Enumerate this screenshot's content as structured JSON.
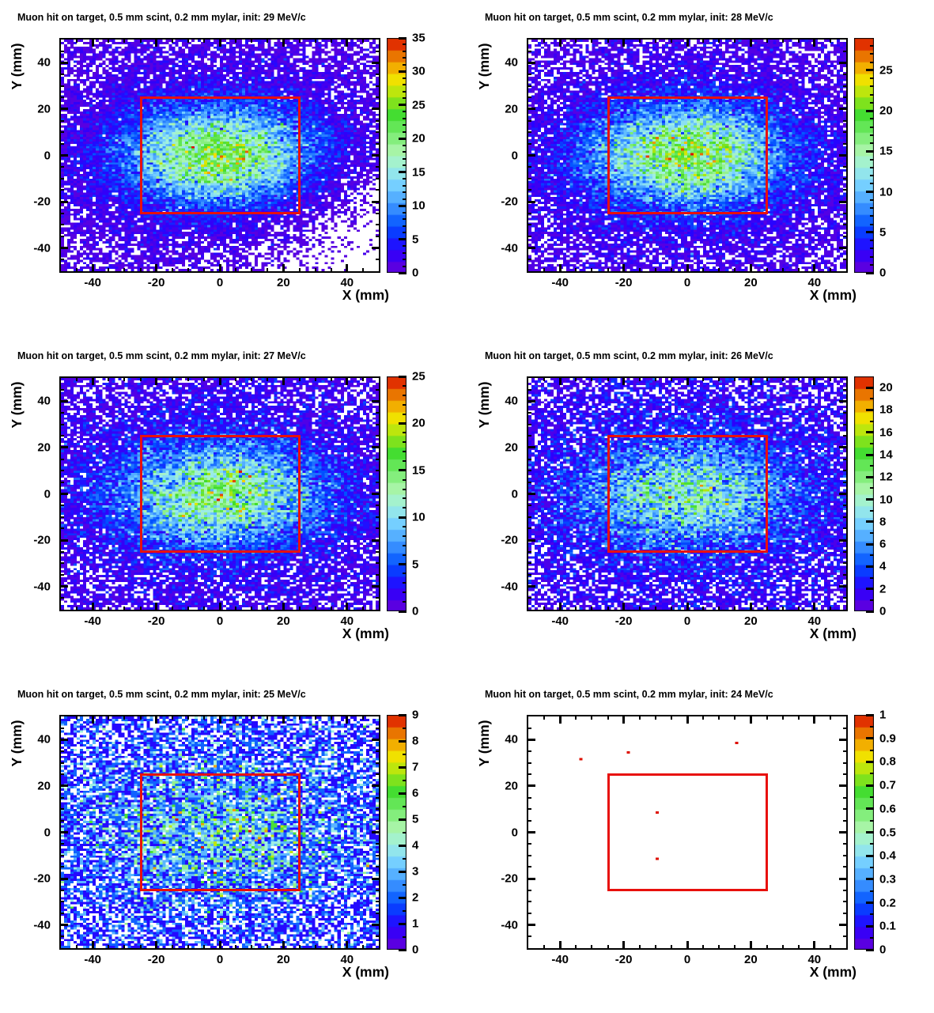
{
  "chart_data": {
    "type": "heatmap",
    "layout": {
      "rows": 3,
      "cols": 2
    },
    "shared": {
      "x_label": "X (mm)",
      "y_label": "Y (mm)",
      "x_range": [
        -50,
        50
      ],
      "y_range": [
        -50,
        50
      ],
      "x_major_ticks": [
        -40,
        -20,
        0,
        20,
        40
      ],
      "y_major_ticks": [
        -40,
        -20,
        0,
        20,
        40
      ],
      "axis_minor_step": 5,
      "bins": [
        100,
        100
      ],
      "grid": false,
      "zero_bin_color": "#ffffff",
      "overlay_rect": {
        "x_min": -25,
        "x_max": 25,
        "y_min": -25,
        "y_max": 25,
        "color": "#e8100c"
      },
      "palette_name": "root-rainbow",
      "palette_stops": [
        [
          0.0,
          106,
          0,
          215
        ],
        [
          0.1,
          40,
          0,
          255
        ],
        [
          0.2,
          0,
          80,
          255
        ],
        [
          0.3,
          70,
          160,
          255
        ],
        [
          0.38,
          120,
          210,
          255
        ],
        [
          0.45,
          160,
          240,
          225
        ],
        [
          0.52,
          170,
          245,
          170
        ],
        [
          0.6,
          115,
          235,
          105
        ],
        [
          0.68,
          65,
          220,
          45
        ],
        [
          0.75,
          160,
          230,
          20
        ],
        [
          0.82,
          240,
          230,
          0
        ],
        [
          0.88,
          242,
          170,
          0
        ],
        [
          0.94,
          230,
          100,
          0
        ],
        [
          1.0,
          222,
          15,
          0
        ]
      ]
    },
    "panels": [
      {
        "title": "Muon hit on target, 0.5 mm scint, 0.2 mm mylar, init: 29 MeV/c",
        "init_momentum_MeV_c": 29,
        "z_max": 35,
        "z_major_ticks": [
          0,
          5,
          10,
          15,
          20,
          25,
          30,
          35
        ],
        "z_minor_step": 1,
        "distribution": {
          "model": "poisson(gaussian_core+background)",
          "amplitude": 21,
          "sigma_x": 19,
          "sigma_y": 13.5,
          "background": 2.2,
          "background_sigma": 55,
          "diag_fade": {
            "c": 55,
            "w": 12
          },
          "seed": 101
        }
      },
      {
        "title": "Muon hit on target, 0.5 mm scint, 0.2 mm mylar, init: 28 MeV/c",
        "init_momentum_MeV_c": 28,
        "z_max": 29,
        "z_major_ticks": [
          0,
          5,
          10,
          15,
          20,
          25
        ],
        "z_minor_step": 1,
        "distribution": {
          "model": "poisson(gaussian_core+background)",
          "amplitude": 17,
          "sigma_x": 20,
          "sigma_y": 14,
          "background": 2.0,
          "background_sigma": 55,
          "diag_fade": null,
          "seed": 202
        }
      },
      {
        "title": "Muon hit on target, 0.5 mm scint, 0.2 mm mylar, init: 27 MeV/c",
        "init_momentum_MeV_c": 27,
        "z_max": 25,
        "z_major_ticks": [
          0,
          5,
          10,
          15,
          20,
          25
        ],
        "z_minor_step": 1,
        "distribution": {
          "model": "poisson(gaussian_core+background)",
          "amplitude": 12.5,
          "sigma_x": 21,
          "sigma_y": 14,
          "background": 2.0,
          "background_sigma": 60,
          "diag_fade": null,
          "seed": 303
        }
      },
      {
        "title": "Muon hit on target, 0.5 mm scint, 0.2 mm mylar, init: 26 MeV/c",
        "init_momentum_MeV_c": 26,
        "z_max": 21,
        "z_major_ticks": [
          0,
          2,
          4,
          6,
          8,
          10,
          12,
          14,
          16,
          18,
          20
        ],
        "z_minor_step": 1,
        "distribution": {
          "model": "poisson(gaussian_core+background)",
          "amplitude": 8.5,
          "sigma_x": 22,
          "sigma_y": 15,
          "background": 1.8,
          "background_sigma": 65,
          "diag_fade": null,
          "seed": 404
        }
      },
      {
        "title": "Muon hit on target, 0.5 mm scint, 0.2 mm mylar, init: 25 MeV/c",
        "init_momentum_MeV_c": 25,
        "z_max": 9,
        "z_major_ticks": [
          0,
          1,
          2,
          3,
          4,
          5,
          6,
          7,
          8,
          9
        ],
        "z_minor_step": 0.5,
        "distribution": {
          "model": "poisson(gaussian_core+background)",
          "amplitude": 2.3,
          "sigma_x": 26,
          "sigma_y": 19,
          "background": 1.2,
          "background_sigma": 90,
          "diag_fade": null,
          "seed": 505
        }
      },
      {
        "title": "Muon hit on target, 0.5 mm scint, 0.2 mm mylar, init: 24 MeV/c",
        "init_momentum_MeV_c": 24,
        "z_max": 1,
        "z_major_ticks": [
          0,
          0.1,
          0.2,
          0.3,
          0.4,
          0.5,
          0.6,
          0.7,
          0.8,
          0.9,
          1
        ],
        "z_minor_step": 0.05,
        "distribution": null,
        "points": [
          {
            "x": 15,
            "y": 39,
            "count": 1
          },
          {
            "x": -19,
            "y": 34.5,
            "count": 1
          },
          {
            "x": -33.5,
            "y": 31.5,
            "count": 1
          },
          {
            "x": -9.5,
            "y": 9,
            "count": 1
          },
          {
            "x": -9.5,
            "y": -11.5,
            "count": 1
          }
        ]
      }
    ]
  }
}
